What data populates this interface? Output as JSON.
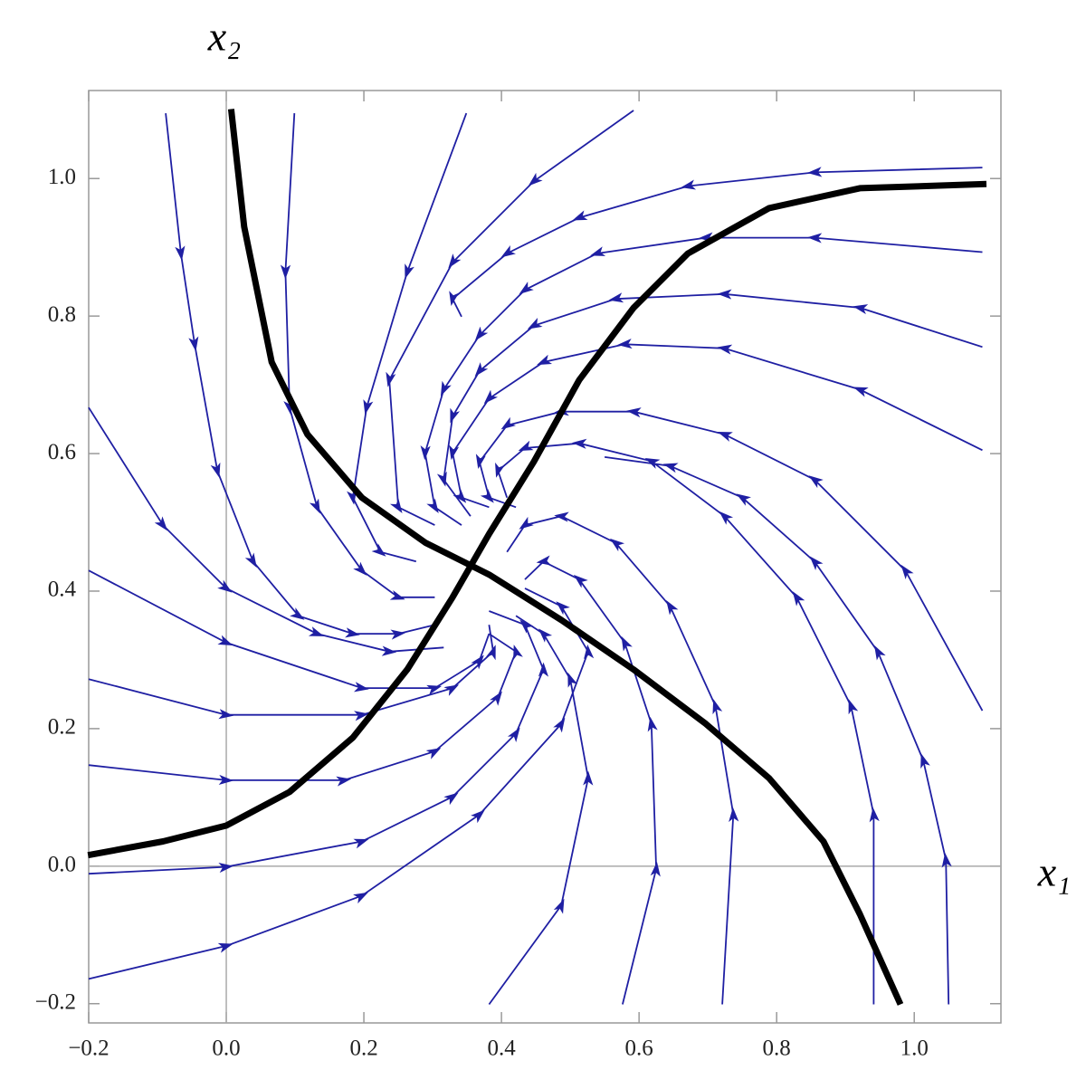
{
  "chart_data": {
    "type": "streamplot",
    "x_label": "x₁",
    "y_label": "x₂",
    "xlim": [
      -0.2,
      1.126
    ],
    "ylim": [
      -0.228,
      1.128
    ],
    "xticks": [
      {
        "value": -0.2,
        "label": "−0.2"
      },
      {
        "value": 0,
        "label": "0.0"
      },
      0.2,
      0.4,
      0.6,
      0.8,
      {
        "value": 1,
        "label": "1.0"
      }
    ],
    "yticks": [
      {
        "value": -0.2,
        "label": "−0.2"
      },
      {
        "value": 0,
        "label": "0.0"
      },
      0.2,
      0.4,
      0.6,
      0.8,
      {
        "value": 1,
        "label": "1.0"
      }
    ],
    "stream_color": "#1f1fa3",
    "nullcline_color": "#000000",
    "nullclines": [
      {
        "x": [
          0.007,
          0.026,
          0.066,
          0.118,
          0.197,
          0.29,
          0.382,
          0.487,
          0.592,
          0.697,
          0.789,
          0.868,
          0.921,
          0.98
        ],
        "y": [
          1.101,
          0.93,
          0.733,
          0.628,
          0.536,
          0.47,
          0.424,
          0.358,
          0.286,
          0.207,
          0.128,
          0.036,
          -0.07,
          -0.201
        ]
      },
      {
        "x": [
          -0.201,
          -0.092,
          0,
          0.092,
          0.184,
          0.263,
          0.329,
          0.382,
          0.447,
          0.513,
          0.592,
          0.671,
          0.789,
          0.921,
          1.105
        ],
        "y": [
          0.016,
          0.036,
          0.059,
          0.108,
          0.187,
          0.286,
          0.391,
          0.483,
          0.588,
          0.707,
          0.812,
          0.891,
          0.957,
          0.986,
          0.992
        ]
      }
    ],
    "streamlines": [
      {
        "x": [
          -0.088,
          -0.066,
          -0.046,
          -0.013,
          0.039,
          0.105,
          0.184,
          0.25,
          0.303
        ],
        "y": [
          1.095,
          0.891,
          0.759,
          0.575,
          0.443,
          0.364,
          0.338,
          0.338,
          0.351
        ]
      },
      {
        "x": [
          0.099,
          0.086,
          0.092,
          0.132,
          0.197,
          0.25,
          0.303
        ],
        "y": [
          1.095,
          0.864,
          0.667,
          0.522,
          0.43,
          0.391,
          0.391
        ]
      },
      {
        "x": [
          0.349,
          0.263,
          0.204,
          0.184,
          0.224,
          0.276
        ],
        "y": [
          1.095,
          0.864,
          0.667,
          0.536,
          0.457,
          0.443
        ]
      },
      {
        "x": [
          0.592,
          0.447,
          0.329,
          0.237,
          0.25,
          0.303
        ],
        "y": [
          1.099,
          0.996,
          0.878,
          0.707,
          0.522,
          0.496
        ]
      },
      {
        "x": [
          1.099,
          0.855,
          0.671,
          0.513,
          0.408,
          0.329,
          0.342
        ],
        "y": [
          1.016,
          1.009,
          0.989,
          0.943,
          0.891,
          0.825,
          0.799
        ]
      },
      {
        "x": [
          1.099,
          0.855,
          0.697,
          0.539,
          0.434,
          0.368,
          0.316,
          0.289,
          0.303,
          0.342
        ],
        "y": [
          0.893,
          0.914,
          0.914,
          0.891,
          0.838,
          0.772,
          0.693,
          0.601,
          0.522,
          0.496
        ]
      },
      {
        "x": [
          1.099,
          0.921,
          0.724,
          0.566,
          0.447,
          0.368,
          0.329,
          0.316,
          0.355
        ],
        "y": [
          0.755,
          0.812,
          0.832,
          0.825,
          0.786,
          0.72,
          0.654,
          0.562,
          0.509
        ]
      },
      {
        "x": [
          1.099,
          0.921,
          0.724,
          0.579,
          0.461,
          0.382,
          0.329,
          0.342,
          0.382
        ],
        "y": [
          0.605,
          0.693,
          0.753,
          0.759,
          0.733,
          0.68,
          0.601,
          0.536,
          0.522
        ]
      },
      {
        "x": [
          1.099,
          0.987,
          0.855,
          0.724,
          0.592,
          0.487,
          0.408,
          0.368,
          0.382,
          0.421
        ],
        "y": [
          0.226,
          0.43,
          0.562,
          0.628,
          0.661,
          0.661,
          0.641,
          0.588,
          0.536,
          0.522
        ]
      },
      {
        "x": [
          0.941,
          0.941,
          0.908,
          0.829,
          0.724,
          0.618,
          0.513,
          0.434,
          0.395,
          0.408
        ],
        "y": [
          -0.201,
          0.075,
          0.233,
          0.391,
          0.509,
          0.589,
          0.615,
          0.608,
          0.575,
          0.536
        ]
      },
      {
        "x": [
          1.05,
          1.046,
          1.013,
          0.947,
          0.855,
          0.75,
          0.645,
          0.55
        ],
        "y": [
          -0.201,
          0.009,
          0.154,
          0.312,
          0.443,
          0.536,
          0.582,
          0.595
        ]
      },
      {
        "x": [
          0.721,
          0.737,
          0.711,
          0.645,
          0.566,
          0.487,
          0.434,
          0.408
        ],
        "y": [
          -0.201,
          0.075,
          0.233,
          0.378,
          0.47,
          0.509,
          0.496,
          0.457
        ]
      },
      {
        "x": [
          0.576,
          0.625,
          0.618,
          0.579,
          0.513,
          0.461,
          0.434
        ],
        "y": [
          -0.201,
          -0.004,
          0.207,
          0.325,
          0.417,
          0.443,
          0.417
        ]
      },
      {
        "x": [
          0.382,
          0.487,
          0.526,
          0.5,
          0.461,
          0.421
        ],
        "y": [
          -0.201,
          -0.057,
          0.128,
          0.272,
          0.338,
          0.364
        ]
      },
      {
        "x": [
          -0.2,
          0,
          0.197,
          0.368,
          0.487,
          0.526,
          0.487,
          0.434
        ],
        "y": [
          -0.164,
          -0.116,
          -0.043,
          0.075,
          0.207,
          0.312,
          0.378,
          0.404
        ]
      },
      {
        "x": [
          -0.2,
          0,
          0.197,
          0.329,
          0.421,
          0.461,
          0.434,
          0.382
        ],
        "y": [
          -0.011,
          -0.001,
          0.036,
          0.101,
          0.193,
          0.286,
          0.351,
          0.371
        ]
      },
      {
        "x": [
          -0.2,
          0,
          0.171,
          0.303,
          0.395,
          0.421,
          0.382
        ],
        "y": [
          0.147,
          0.125,
          0.125,
          0.167,
          0.246,
          0.312,
          0.338
        ]
      },
      {
        "x": [
          -0.2,
          0,
          0.197,
          0.329,
          0.388,
          0.382
        ],
        "y": [
          0.272,
          0.22,
          0.22,
          0.259,
          0.312,
          0.351
        ]
      },
      {
        "x": [
          -0.2,
          0,
          0.197,
          0.303,
          0.368,
          0.382
        ],
        "y": [
          0.43,
          0.325,
          0.259,
          0.259,
          0.299,
          0.338
        ]
      },
      {
        "x": [
          -0.2,
          -0.092,
          0,
          0.132,
          0.237,
          0.316
        ],
        "y": [
          0.667,
          0.496,
          0.404,
          0.338,
          0.312,
          0.318
        ]
      }
    ]
  }
}
